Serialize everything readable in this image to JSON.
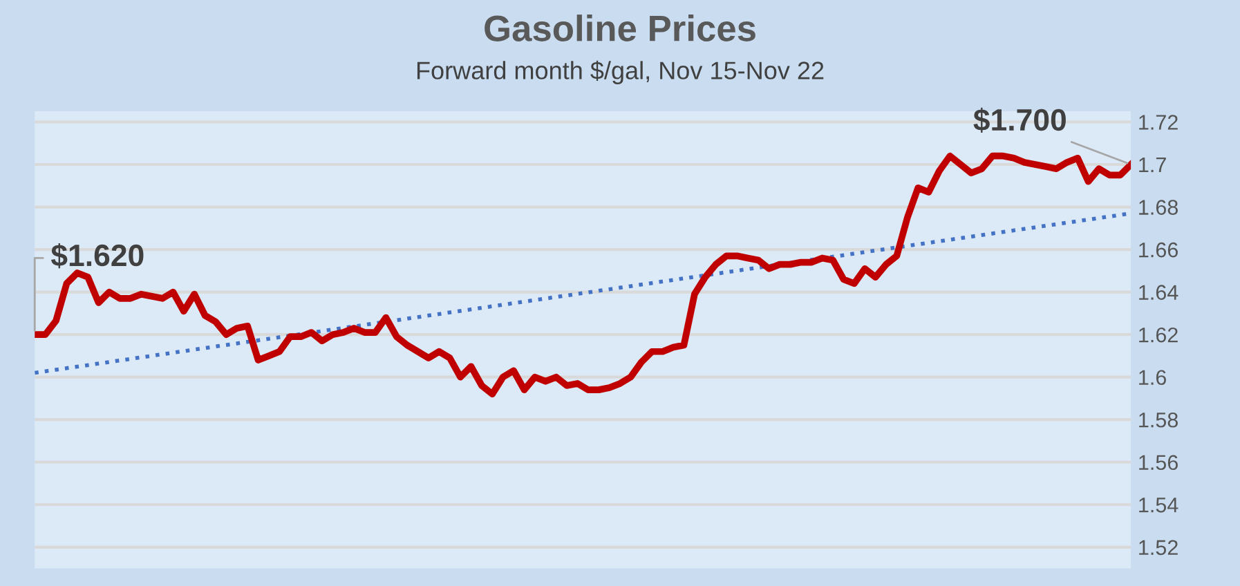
{
  "chart_data": {
    "type": "line",
    "title": "Gasoline Prices",
    "subtitle": "Forward month $/gal, Nov 15-Nov 22",
    "categories": [
      null,
      null,
      null,
      null,
      null,
      null,
      null,
      null,
      null,
      null,
      null,
      null,
      null,
      null,
      null,
      null,
      null,
      null,
      null,
      null,
      null,
      null,
      null,
      null,
      null,
      null,
      null,
      null,
      null,
      null,
      null,
      null,
      null,
      null,
      null,
      null,
      null,
      null,
      null,
      null,
      null,
      null,
      null,
      null,
      null,
      null,
      null,
      null,
      null,
      null,
      null,
      null,
      null,
      null,
      null,
      null,
      null,
      null,
      null,
      null,
      null,
      null,
      null,
      null,
      null,
      null,
      null,
      null,
      null,
      null,
      null,
      null,
      null,
      null,
      null,
      null,
      null,
      null,
      null,
      null,
      null,
      null,
      null,
      null,
      null,
      null,
      null,
      null,
      null,
      null,
      null,
      null,
      null,
      null,
      null,
      null,
      null,
      null,
      null,
      null,
      null,
      null,
      null,
      null
    ],
    "series": [
      {
        "color": "#c00000",
        "line_style": "solid",
        "values": [
          1.62,
          1.62,
          1.6265,
          1.644,
          1.649,
          1.647,
          1.635,
          1.64,
          1.637,
          1.637,
          1.639,
          1.638,
          1.637,
          1.64,
          1.631,
          1.639,
          1.629,
          1.626,
          1.62,
          1.623,
          1.624,
          1.608,
          1.61,
          1.612,
          1.619,
          1.619,
          1.621,
          1.617,
          1.62,
          1.621,
          1.623,
          1.621,
          1.621,
          1.628,
          1.619,
          1.615,
          1.612,
          1.609,
          1.612,
          1.609,
          1.6,
          1.605,
          1.596,
          1.592,
          1.6,
          1.603,
          1.594,
          1.6,
          1.598,
          1.6,
          1.596,
          1.597,
          1.594,
          1.594,
          1.595,
          1.597,
          1.6,
          1.607,
          1.612,
          1.612,
          1.614,
          1.615,
          1.639,
          1.647,
          1.653,
          1.657,
          1.657,
          1.656,
          1.655,
          1.651,
          1.653,
          1.653,
          1.654,
          1.654,
          1.656,
          1.655,
          1.646,
          1.644,
          1.651,
          1.647,
          1.653,
          1.657,
          1.675,
          1.689,
          1.687,
          1.697,
          1.704,
          1.7,
          1.696,
          1.698,
          1.704,
          1.704,
          1.703,
          1.701,
          1.7,
          1.699,
          1.698,
          1.701,
          1.703,
          1.692,
          1.698,
          1.695,
          1.695,
          1.7
        ]
      },
      {
        "type": "line",
        "color": "#4472c4",
        "line_style": "dotted",
        "values": [
          1.602,
          null,
          null,
          null,
          null,
          null,
          null,
          null,
          null,
          null,
          null,
          null,
          null,
          null,
          null,
          null,
          null,
          null,
          null,
          null,
          null,
          null,
          null,
          null,
          null,
          null,
          null,
          null,
          null,
          null,
          null,
          null,
          null,
          null,
          null,
          null,
          null,
          null,
          null,
          null,
          null,
          null,
          null,
          null,
          null,
          null,
          null,
          null,
          null,
          null,
          null,
          null,
          null,
          null,
          null,
          null,
          null,
          null,
          null,
          null,
          null,
          null,
          null,
          null,
          null,
          null,
          null,
          null,
          null,
          null,
          null,
          null,
          null,
          null,
          null,
          null,
          null,
          null,
          null,
          null,
          null,
          null,
          null,
          null,
          null,
          null,
          null,
          null,
          null,
          null,
          null,
          null,
          null,
          null,
          null,
          null,
          null,
          null,
          null,
          null,
          null,
          null,
          null,
          1.677
        ]
      }
    ],
    "ylim": [
      1.51,
      1.725
    ],
    "yticks": [
      1.52,
      1.54,
      1.56,
      1.58,
      1.6,
      1.62,
      1.64,
      1.66,
      1.68,
      1.7,
      1.72
    ],
    "grid": "y",
    "tick_labels": "y",
    "annotations": [
      "$1.620",
      "$1.700"
    ]
  }
}
